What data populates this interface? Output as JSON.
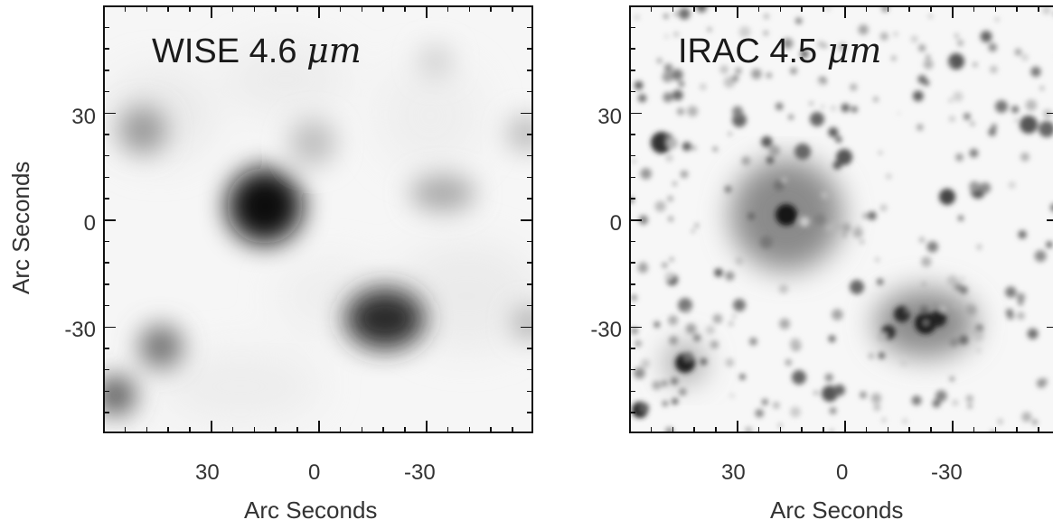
{
  "panels": [
    {
      "label_prefix": "WISE 4.6 ",
      "label_unit": "μm",
      "x_ticks": [
        "30",
        "0",
        "-30"
      ],
      "y_ticks": [
        "30",
        "0",
        "-30"
      ],
      "x_title": "Arc Seconds",
      "y_title": "Arc Seconds"
    },
    {
      "label_prefix": "IRAC 4.5 ",
      "label_unit": "μm",
      "x_ticks": [
        "30",
        "0",
        "-30"
      ],
      "y_ticks": [
        "30",
        "0",
        "-30"
      ],
      "x_title": "Arc Seconds"
    }
  ]
}
